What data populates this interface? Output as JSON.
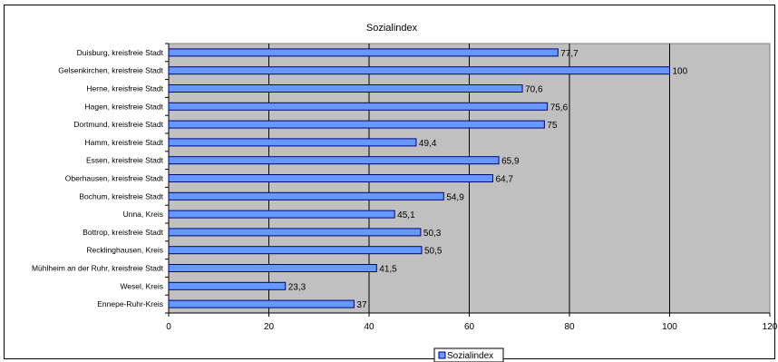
{
  "chart_data": {
    "type": "bar",
    "orientation": "horizontal",
    "title": "Sozialindex",
    "categories": [
      "Duisburg, kreisfreie Stadt",
      "Gelsenkirchen, kreisfreie Stadt",
      "Herne, kreisfreie Stadt",
      "Hagen, kreisfreie Stadt",
      "Dortmund, kreisfreie Stadt",
      "Hamm, kreisfreie Stadt",
      "Essen, kreisfreie Stadt",
      "Oberhausen, kreisfreie Stadt",
      "Bochum, kreisfreie Stadt",
      "Unna, Kreis",
      "Bottrop, kreisfreie Stadt",
      "Recklinghausen, Kreis",
      "Mühlheim an der Ruhr, kreisfreie Stadt",
      "Wesel, Kreis",
      "Ennepe-Ruhr-Kreis"
    ],
    "series": [
      {
        "name": "Sozialindex",
        "values": [
          77.7,
          100,
          70.6,
          75.6,
          75,
          49.4,
          65.9,
          64.7,
          54.9,
          45.1,
          50.3,
          50.5,
          41.5,
          23.3,
          37
        ],
        "labels": [
          "77,7",
          "100",
          "70,6",
          "75,6",
          "75",
          "49,4",
          "65,9",
          "64,7",
          "54,9",
          "45,1",
          "50,3",
          "50,5",
          "41,5",
          "23,3",
          "37"
        ]
      }
    ],
    "xlim": [
      0,
      120
    ],
    "xticks": [
      "0",
      "20",
      "40",
      "60",
      "80",
      "100",
      "120"
    ],
    "xlabel": "",
    "ylabel": "",
    "grid": "vertical",
    "legend": "bottom",
    "colors": {
      "bar_fill": "#6699ff",
      "bar_stroke": "#000080",
      "plot_background": "#c0c0c0",
      "gridline": "#000000"
    }
  }
}
